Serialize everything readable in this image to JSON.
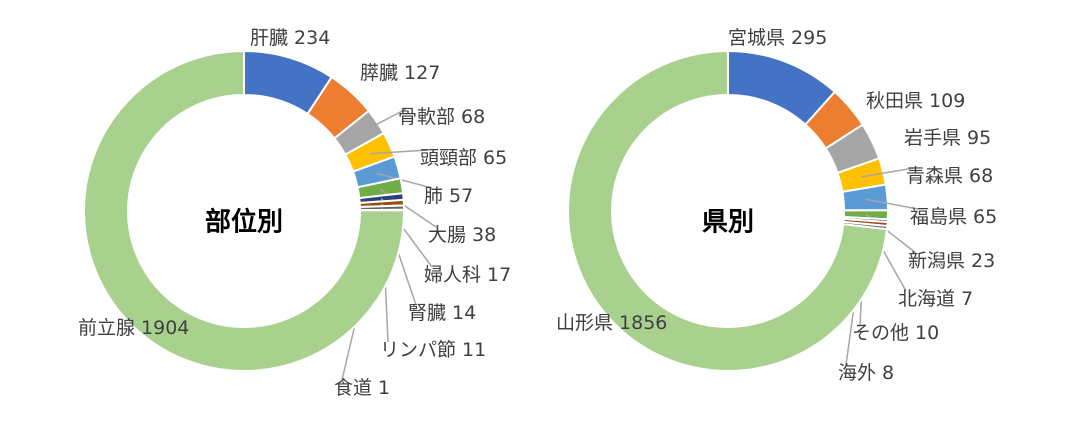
{
  "chart_data": [
    {
      "type": "pie",
      "donut": true,
      "title": "部位別",
      "categories": [
        "肝臓",
        "膵臓",
        "骨軟部",
        "頭頸部",
        "肺",
        "大腸",
        "婦人科",
        "腎臓",
        "リンパ節",
        "食道",
        "前立腺"
      ],
      "values": [
        234,
        127,
        68,
        65,
        57,
        38,
        17,
        14,
        11,
        1,
        1904
      ],
      "colors": [
        "#4472c4",
        "#ed7d31",
        "#a5a5a5",
        "#ffc000",
        "#5b9bd5",
        "#70ad47",
        "#264478",
        "#9e480e",
        "#636363",
        "#997300",
        "#a9d18e"
      ]
    },
    {
      "type": "pie",
      "donut": true,
      "title": "県別",
      "categories": [
        "宮城県",
        "秋田県",
        "岩手県",
        "青森県",
        "福島県",
        "新潟県",
        "北海道",
        "その他",
        "海外",
        "山形県"
      ],
      "values": [
        295,
        109,
        95,
        68,
        65,
        23,
        7,
        10,
        8,
        1856
      ],
      "colors": [
        "#4472c4",
        "#ed7d31",
        "#a5a5a5",
        "#ffc000",
        "#5b9bd5",
        "#70ad47",
        "#264478",
        "#9e480e",
        "#636363",
        "#a9d18e"
      ]
    }
  ]
}
